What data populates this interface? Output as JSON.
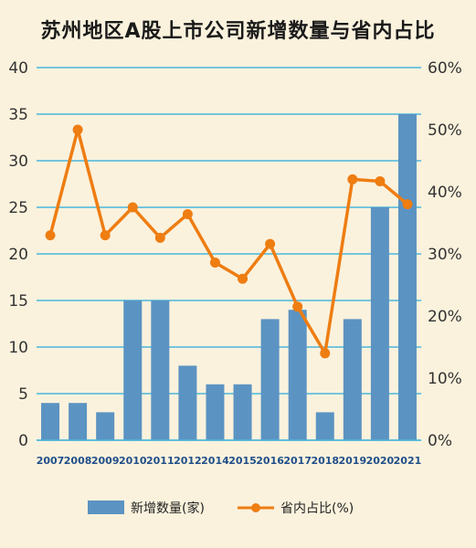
{
  "chart_data": {
    "type": "bar+line",
    "title": "苏州地区A股上市公司新增数量与省内占比",
    "categories": [
      "2007",
      "2008",
      "2009",
      "2010",
      "2011",
      "2012",
      "2014",
      "2015",
      "2016",
      "2017",
      "2018",
      "2019",
      "2020",
      "2021"
    ],
    "series": [
      {
        "name": "新增数量(家)",
        "type": "bar",
        "axis": "left",
        "color": "#5b93c2",
        "values": [
          4,
          4,
          3,
          15,
          15,
          8,
          6,
          6,
          13,
          14,
          3,
          13,
          25,
          35
        ]
      },
      {
        "name": "省内占比(%)",
        "type": "line",
        "axis": "right",
        "color": "#ee7d12",
        "values": [
          33,
          50,
          33,
          37.5,
          32.6,
          36.4,
          28.6,
          26,
          31.6,
          21.5,
          14,
          42,
          41.7,
          38
        ]
      }
    ],
    "left_axis": {
      "ylim": [
        0,
        40
      ],
      "ticks": [
        "0",
        "5",
        "10",
        "15",
        "20",
        "25",
        "30",
        "35",
        "40"
      ]
    },
    "right_axis": {
      "ylim": [
        0,
        60
      ],
      "ticks": [
        "0%",
        "10%",
        "20%",
        "30%",
        "40%",
        "50%",
        "60%"
      ]
    },
    "grid": true,
    "legend_position": "bottom"
  }
}
